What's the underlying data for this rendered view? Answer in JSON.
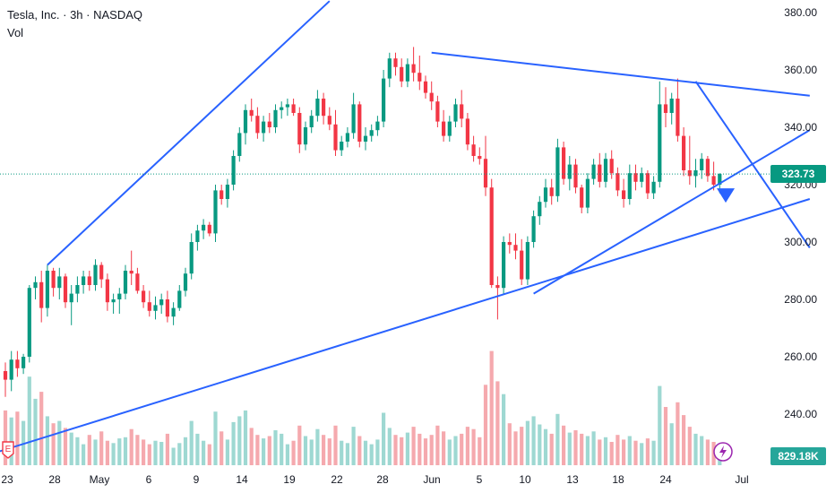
{
  "header": {
    "title": "Tesla, Inc. · 3h · NASDAQ",
    "indicator": "Vol"
  },
  "price_axis": {
    "ticks": [
      "380.00",
      "360.00",
      "340.00",
      "320.00",
      "300.00",
      "280.00",
      "260.00",
      "240.00"
    ]
  },
  "time_axis": {
    "ticks": [
      "23",
      "28",
      "May",
      "6",
      "9",
      "14",
      "19",
      "22",
      "28",
      "Jun",
      "5",
      "10",
      "13",
      "18",
      "24",
      "Jul"
    ]
  },
  "last_price": {
    "label": "323.73",
    "color": "#089981"
  },
  "volume_label": {
    "label": "829.18K",
    "color": "#26a69a"
  },
  "badges": {
    "earnings": "E"
  },
  "colors": {
    "up": "#089981",
    "down": "#f23645",
    "vol_up": "#9ed8d2",
    "vol_down": "#f5a9ae",
    "trendline": "#2962ff"
  },
  "chart_data": {
    "type": "candlestick",
    "title": "Tesla, Inc. · 3h · NASDAQ",
    "ylim": [
      225,
      384
    ],
    "grid": false,
    "candles": [
      [
        255,
        258,
        246,
        252
      ],
      [
        252,
        262,
        248,
        259
      ],
      [
        259,
        262,
        253,
        256
      ],
      [
        256,
        261,
        254,
        260
      ],
      [
        260,
        285,
        258,
        284
      ],
      [
        284,
        288,
        280,
        286
      ],
      [
        286,
        290,
        272,
        277
      ],
      [
        277,
        292,
        274,
        290
      ],
      [
        290,
        291,
        281,
        284
      ],
      [
        284,
        291,
        280,
        288
      ],
      [
        288,
        289,
        277,
        279
      ],
      [
        279,
        285,
        271,
        282
      ],
      [
        282,
        288,
        279,
        285
      ],
      [
        285,
        290,
        282,
        288
      ],
      [
        288,
        290,
        283,
        285
      ],
      [
        285,
        294,
        283,
        292
      ],
      [
        292,
        293,
        284,
        287
      ],
      [
        287,
        289,
        276,
        279
      ],
      [
        279,
        282,
        275,
        280
      ],
      [
        280,
        284,
        275,
        282
      ],
      [
        282,
        292,
        280,
        290
      ],
      [
        290,
        297,
        285,
        289
      ],
      [
        289,
        291,
        282,
        283
      ],
      [
        283,
        285,
        277,
        279
      ],
      [
        279,
        283,
        274,
        276
      ],
      [
        276,
        281,
        273,
        278
      ],
      [
        278,
        282,
        275,
        280
      ],
      [
        280,
        283,
        272,
        274
      ],
      [
        274,
        279,
        271,
        277
      ],
      [
        277,
        285,
        276,
        283
      ],
      [
        283,
        291,
        281,
        289
      ],
      [
        289,
        303,
        287,
        300
      ],
      [
        300,
        306,
        297,
        304
      ],
      [
        304,
        308,
        301,
        306
      ],
      [
        306,
        307,
        302,
        303
      ],
      [
        303,
        320,
        300,
        318
      ],
      [
        318,
        320,
        313,
        315
      ],
      [
        315,
        322,
        312,
        320
      ],
      [
        320,
        332,
        318,
        330
      ],
      [
        330,
        340,
        328,
        338
      ],
      [
        338,
        348,
        334,
        346
      ],
      [
        346,
        350,
        342,
        344
      ],
      [
        344,
        347,
        336,
        338
      ],
      [
        338,
        344,
        335,
        342
      ],
      [
        342,
        345,
        338,
        340
      ],
      [
        340,
        348,
        338,
        346
      ],
      [
        346,
        349,
        343,
        347
      ],
      [
        347,
        350,
        344,
        348
      ],
      [
        348,
        350,
        344,
        345
      ],
      [
        345,
        347,
        331,
        334
      ],
      [
        334,
        342,
        332,
        340
      ],
      [
        340,
        346,
        338,
        344
      ],
      [
        344,
        353,
        342,
        350
      ],
      [
        350,
        352,
        341,
        344
      ],
      [
        344,
        347,
        339,
        341
      ],
      [
        341,
        346,
        330,
        332
      ],
      [
        332,
        337,
        330,
        335
      ],
      [
        335,
        340,
        333,
        338
      ],
      [
        338,
        352,
        336,
        348
      ],
      [
        348,
        349,
        333,
        335
      ],
      [
        335,
        340,
        332,
        337
      ],
      [
        337,
        341,
        335,
        339
      ],
      [
        339,
        344,
        337,
        342
      ],
      [
        342,
        360,
        340,
        357
      ],
      [
        357,
        366,
        354,
        364
      ],
      [
        364,
        366,
        358,
        361
      ],
      [
        361,
        364,
        354,
        356
      ],
      [
        356,
        364,
        354,
        362
      ],
      [
        362,
        368,
        356,
        359
      ],
      [
        359,
        365,
        353,
        356
      ],
      [
        356,
        358,
        350,
        352
      ],
      [
        352,
        356,
        346,
        349
      ],
      [
        349,
        351,
        340,
        342
      ],
      [
        342,
        346,
        335,
        337
      ],
      [
        337,
        344,
        335,
        342
      ],
      [
        342,
        350,
        340,
        348
      ],
      [
        348,
        353,
        340,
        343
      ],
      [
        343,
        345,
        332,
        334
      ],
      [
        334,
        337,
        328,
        330
      ],
      [
        330,
        333,
        327,
        329
      ],
      [
        329,
        337,
        316,
        319
      ],
      [
        319,
        322,
        284,
        285
      ],
      [
        285,
        288,
        273,
        284
      ],
      [
        284,
        302,
        282,
        300
      ],
      [
        300,
        303,
        296,
        299
      ],
      [
        299,
        303,
        294,
        297
      ],
      [
        297,
        301,
        285,
        287
      ],
      [
        287,
        302,
        285,
        300
      ],
      [
        300,
        311,
        298,
        309
      ],
      [
        309,
        316,
        306,
        314
      ],
      [
        314,
        322,
        312,
        319
      ],
      [
        319,
        322,
        313,
        316
      ],
      [
        316,
        336,
        314,
        333
      ],
      [
        333,
        335,
        320,
        322
      ],
      [
        322,
        330,
        318,
        327
      ],
      [
        327,
        329,
        317,
        319
      ],
      [
        319,
        320,
        310,
        312
      ],
      [
        312,
        324,
        310,
        322
      ],
      [
        322,
        329,
        320,
        327
      ],
      [
        327,
        331,
        319,
        321
      ],
      [
        321,
        331,
        319,
        329
      ],
      [
        329,
        332,
        322,
        324
      ],
      [
        324,
        326,
        316,
        318
      ],
      [
        318,
        322,
        312,
        315
      ],
      [
        315,
        327,
        313,
        324
      ],
      [
        324,
        327,
        318,
        321
      ],
      [
        321,
        326,
        319,
        324
      ],
      [
        324,
        325,
        315,
        317
      ],
      [
        317,
        323,
        315,
        321
      ],
      [
        321,
        356,
        319,
        348
      ],
      [
        348,
        354,
        340,
        345
      ],
      [
        345,
        352,
        341,
        350
      ],
      [
        350,
        357,
        335,
        337
      ],
      [
        337,
        340,
        323,
        325
      ],
      [
        325,
        337,
        320,
        323
      ],
      [
        323,
        329,
        319,
        325
      ],
      [
        325,
        331,
        322,
        329
      ],
      [
        329,
        330,
        321,
        323
      ],
      [
        323,
        328,
        318,
        320
      ],
      [
        320,
        324,
        317,
        323.73
      ]
    ],
    "volume": [
      0.47,
      0.41,
      0.46,
      0.38,
      0.76,
      0.57,
      0.63,
      0.42,
      0.36,
      0.38,
      0.32,
      0.28,
      0.24,
      0.18,
      0.26,
      0.22,
      0.29,
      0.21,
      0.19,
      0.23,
      0.24,
      0.31,
      0.26,
      0.22,
      0.18,
      0.21,
      0.2,
      0.27,
      0.15,
      0.19,
      0.24,
      0.38,
      0.27,
      0.21,
      0.18,
      0.46,
      0.29,
      0.22,
      0.37,
      0.42,
      0.47,
      0.32,
      0.26,
      0.23,
      0.25,
      0.3,
      0.27,
      0.18,
      0.21,
      0.34,
      0.25,
      0.22,
      0.31,
      0.26,
      0.23,
      0.34,
      0.21,
      0.19,
      0.33,
      0.25,
      0.21,
      0.18,
      0.22,
      0.45,
      0.32,
      0.26,
      0.24,
      0.28,
      0.33,
      0.27,
      0.23,
      0.26,
      0.34,
      0.29,
      0.22,
      0.25,
      0.27,
      0.33,
      0.31,
      0.24,
      0.69,
      0.98,
      0.72,
      0.61,
      0.36,
      0.29,
      0.33,
      0.38,
      0.42,
      0.35,
      0.31,
      0.27,
      0.44,
      0.34,
      0.28,
      0.3,
      0.27,
      0.25,
      0.29,
      0.22,
      0.24,
      0.2,
      0.26,
      0.22,
      0.25,
      0.21,
      0.19,
      0.23,
      0.21,
      0.68,
      0.5,
      0.36,
      0.54,
      0.43,
      0.33,
      0.27,
      0.25,
      0.22,
      0.2,
      0.18
    ],
    "trendlines": [
      {
        "from": [
          7,
          292
        ],
        "to": [
          54,
          384
        ]
      },
      {
        "from": [
          -1,
          227
        ],
        "to": [
          134,
          315
        ]
      },
      {
        "from": [
          88,
          282
        ],
        "to": [
          134,
          339
        ]
      },
      {
        "from": [
          71,
          366
        ],
        "to": [
          134,
          351
        ]
      },
      {
        "from": [
          115,
          356
        ],
        "to": [
          134,
          298
        ]
      }
    ]
  }
}
